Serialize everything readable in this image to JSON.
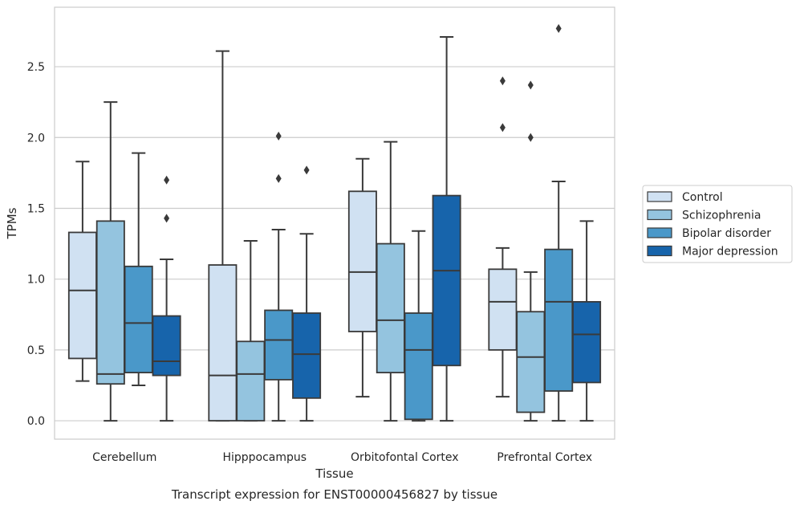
{
  "chart_data": {
    "type": "boxplot",
    "title": "",
    "caption": "Transcript expression for ENST00000456827 by tissue",
    "xlabel": "Tissue",
    "ylabel": "TPMs",
    "ylim": [
      -0.13,
      2.92
    ],
    "yticks": [
      "0.0",
      "0.5",
      "1.0",
      "1.5",
      "2.0",
      "2.5"
    ],
    "grid": true,
    "legend_position": "right",
    "categories": [
      "Cerebellum",
      "Hipppocampus",
      "Orbitofontal Cortex",
      "Prefrontal Cortex"
    ],
    "series": [
      {
        "name": "Control",
        "color": "#d0e1f2",
        "boxes": [
          {
            "whislo": 0.28,
            "q1": 0.44,
            "med": 0.92,
            "q3": 1.33,
            "whishi": 1.83,
            "fliers": []
          },
          {
            "whislo": 0.0,
            "q1": 0.0,
            "med": 0.32,
            "q3": 1.1,
            "whishi": 2.61,
            "fliers": []
          },
          {
            "whislo": 0.17,
            "q1": 0.63,
            "med": 1.05,
            "q3": 1.62,
            "whishi": 1.85,
            "fliers": []
          },
          {
            "whislo": 0.17,
            "q1": 0.5,
            "med": 0.84,
            "q3": 1.07,
            "whishi": 1.22,
            "fliers": [
              2.07,
              2.4
            ]
          }
        ]
      },
      {
        "name": "Schizophrenia",
        "color": "#94c4df",
        "boxes": [
          {
            "whislo": 0.0,
            "q1": 0.26,
            "med": 0.33,
            "q3": 1.41,
            "whishi": 2.25,
            "fliers": []
          },
          {
            "whislo": 0.0,
            "q1": 0.0,
            "med": 0.33,
            "q3": 0.56,
            "whishi": 1.27,
            "fliers": []
          },
          {
            "whislo": 0.0,
            "q1": 0.34,
            "med": 0.71,
            "q3": 1.25,
            "whishi": 1.97,
            "fliers": []
          },
          {
            "whislo": 0.0,
            "q1": 0.06,
            "med": 0.45,
            "q3": 0.77,
            "whishi": 1.05,
            "fliers": [
              2.0,
              2.37
            ]
          }
        ]
      },
      {
        "name": "Bipolar disorder",
        "color": "#4a98c9",
        "boxes": [
          {
            "whislo": 0.25,
            "q1": 0.34,
            "med": 0.69,
            "q3": 1.09,
            "whishi": 1.89,
            "fliers": []
          },
          {
            "whislo": 0.0,
            "q1": 0.29,
            "med": 0.57,
            "q3": 0.78,
            "whishi": 1.35,
            "fliers": [
              1.71,
              2.01
            ]
          },
          {
            "whislo": 0.0,
            "q1": 0.01,
            "med": 0.5,
            "q3": 0.76,
            "whishi": 1.34,
            "fliers": []
          },
          {
            "whislo": 0.0,
            "q1": 0.21,
            "med": 0.84,
            "q3": 1.21,
            "whishi": 1.69,
            "fliers": [
              2.77
            ]
          }
        ]
      },
      {
        "name": "Major depression",
        "color": "#1764ab",
        "boxes": [
          {
            "whislo": 0.0,
            "q1": 0.32,
            "med": 0.42,
            "q3": 0.74,
            "whishi": 1.14,
            "fliers": [
              1.43,
              1.7
            ]
          },
          {
            "whislo": 0.0,
            "q1": 0.16,
            "med": 0.47,
            "q3": 0.76,
            "whishi": 1.32,
            "fliers": [
              1.77
            ]
          },
          {
            "whislo": 0.0,
            "q1": 0.39,
            "med": 1.06,
            "q3": 1.59,
            "whishi": 2.71,
            "fliers": []
          },
          {
            "whislo": 0.0,
            "q1": 0.27,
            "med": 0.61,
            "q3": 0.84,
            "whishi": 1.41,
            "fliers": []
          }
        ]
      }
    ]
  }
}
